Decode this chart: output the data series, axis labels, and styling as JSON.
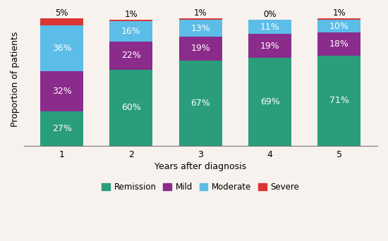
{
  "years": [
    1,
    2,
    3,
    4,
    5
  ],
  "remission": [
    27,
    60,
    67,
    69,
    71
  ],
  "mild": [
    32,
    22,
    19,
    19,
    18
  ],
  "moderate": [
    36,
    16,
    13,
    11,
    10
  ],
  "severe": [
    5,
    1,
    1,
    0,
    1
  ],
  "colors": {
    "remission": "#2a9d7c",
    "mild": "#8b2b8b",
    "moderate": "#5bbde8",
    "severe": "#d93535"
  },
  "xlabel": "Years after diagnosis",
  "ylabel": "Proportion of patients",
  "legend_labels": [
    "Remission",
    "Mild",
    "Moderate",
    "Severe"
  ],
  "bar_width": 0.62,
  "background_color": "#f7f2ed",
  "ylim": [
    0,
    105
  ],
  "label_fontsize": 9,
  "axis_fontsize": 9
}
